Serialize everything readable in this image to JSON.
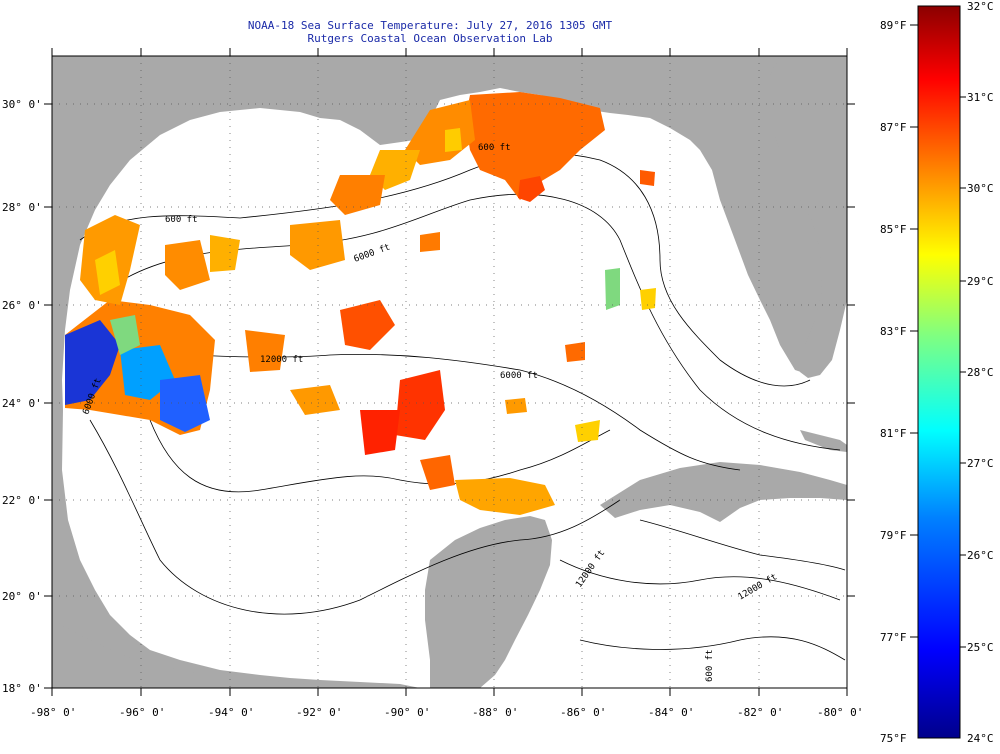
{
  "title": {
    "line1": "NOAA-18 Sea Surface Temperature:  July 27, 2016 1305 GMT",
    "line2": "Rutgers Coastal Ocean Observation Lab"
  },
  "map": {
    "lon_labels": [
      "-98° 0'",
      "-96° 0'",
      "-94° 0'",
      "-92° 0'",
      "-90° 0'",
      "-88° 0'",
      "-86° 0'",
      "-84° 0'",
      "-82° 0'",
      "-80° 0'"
    ],
    "lat_labels": [
      "30° 0'",
      "28° 0'",
      "26° 0'",
      "24° 0'",
      "22° 0'",
      "20° 0'",
      "18° 0'"
    ],
    "isobath_labels": [
      "600 ft",
      "600 ft",
      "6000 ft",
      "12000 ft",
      "6000 ft",
      "6000 ft",
      "12000 ft",
      "12000 ft",
      "600 ft"
    ],
    "colors": {
      "land": "#a9a9a9",
      "ocean": "#ffffff",
      "title": "#1a2aa8"
    }
  },
  "colorbar": {
    "fahrenheit_labels": [
      "89°F",
      "87°F",
      "85°F",
      "83°F",
      "81°F",
      "79°F",
      "77°F",
      "75°F"
    ],
    "celsius_labels": [
      "32°C",
      "31°C",
      "30°C",
      "29°C",
      "28°C",
      "27°C",
      "26°C",
      "25°C",
      "24°C"
    ],
    "range_c": [
      24,
      32
    ],
    "range_f": [
      75,
      89
    ],
    "colormap": [
      "#00008b",
      "#0000ff",
      "#0080ff",
      "#00ffff",
      "#80ff80",
      "#ffff00",
      "#ff8000",
      "#ff0000",
      "#8b0000"
    ]
  }
}
